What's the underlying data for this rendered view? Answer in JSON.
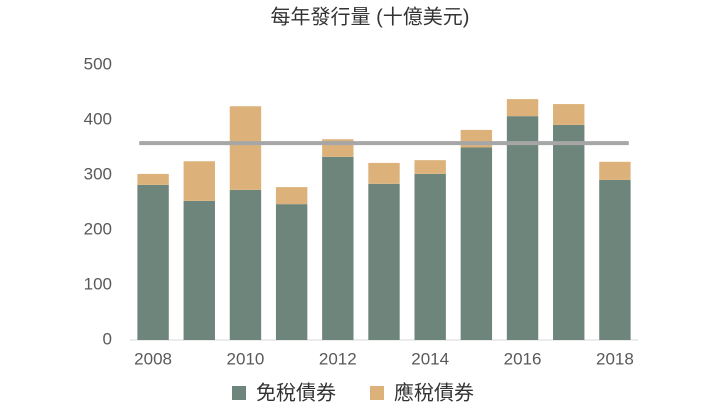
{
  "chart_data": {
    "type": "bar",
    "stacked": true,
    "title": "每年發行量 (十億美元)",
    "categories": [
      "2008",
      null,
      "2010",
      null,
      "2012",
      null,
      "2014",
      null,
      "2016",
      null,
      "2018"
    ],
    "series": [
      {
        "name": "免稅債券",
        "color": "#6e857c",
        "values": [
          282,
          253,
          273,
          247,
          333,
          284,
          302,
          350,
          407,
          391,
          291
        ]
      },
      {
        "name": "應稅債券",
        "color": "#dcb27a",
        "values": [
          20,
          72,
          152,
          31,
          32,
          38,
          25,
          32,
          31,
          38,
          33
        ]
      }
    ],
    "hline": {
      "value": 358,
      "color": "#a6a6a6"
    },
    "ylim": [
      0,
      500
    ],
    "yticks": [
      0,
      100,
      200,
      300,
      400,
      500
    ],
    "grid": false,
    "legend": "bottom"
  }
}
